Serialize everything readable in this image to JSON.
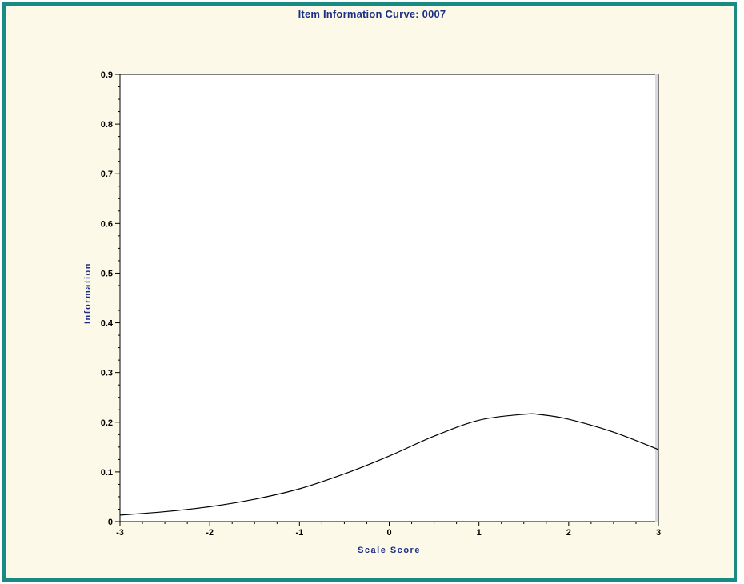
{
  "chart_data": {
    "type": "line",
    "title": "Item Information Curve: 0007",
    "xlabel": "Scale Score",
    "ylabel": "Information",
    "xlim": [
      -3,
      3
    ],
    "ylim": [
      0,
      0.9
    ],
    "x_ticks": [
      "-3",
      "-2",
      "-1",
      "0",
      "1",
      "2",
      "3"
    ],
    "y_ticks": [
      "0",
      "0.1",
      "0.2",
      "0.3",
      "0.4",
      "0.5",
      "0.6",
      "0.7",
      "0.8",
      "0.9"
    ],
    "grid": false,
    "series": [
      {
        "x": [
          -3.0,
          -2.5,
          -2.0,
          -1.5,
          -1.0,
          -0.5,
          0.0,
          0.5,
          1.0,
          1.5,
          1.7,
          2.0,
          2.5,
          3.0
        ],
        "y": [
          0.013,
          0.02,
          0.03,
          0.045,
          0.066,
          0.096,
          0.132,
          0.172,
          0.204,
          0.216,
          0.215,
          0.206,
          0.18,
          0.145
        ]
      }
    ]
  },
  "colors": {
    "frame": "#1a8a84",
    "background": "#fdf9e8",
    "title": "#1e2e86",
    "line": "#000000"
  }
}
